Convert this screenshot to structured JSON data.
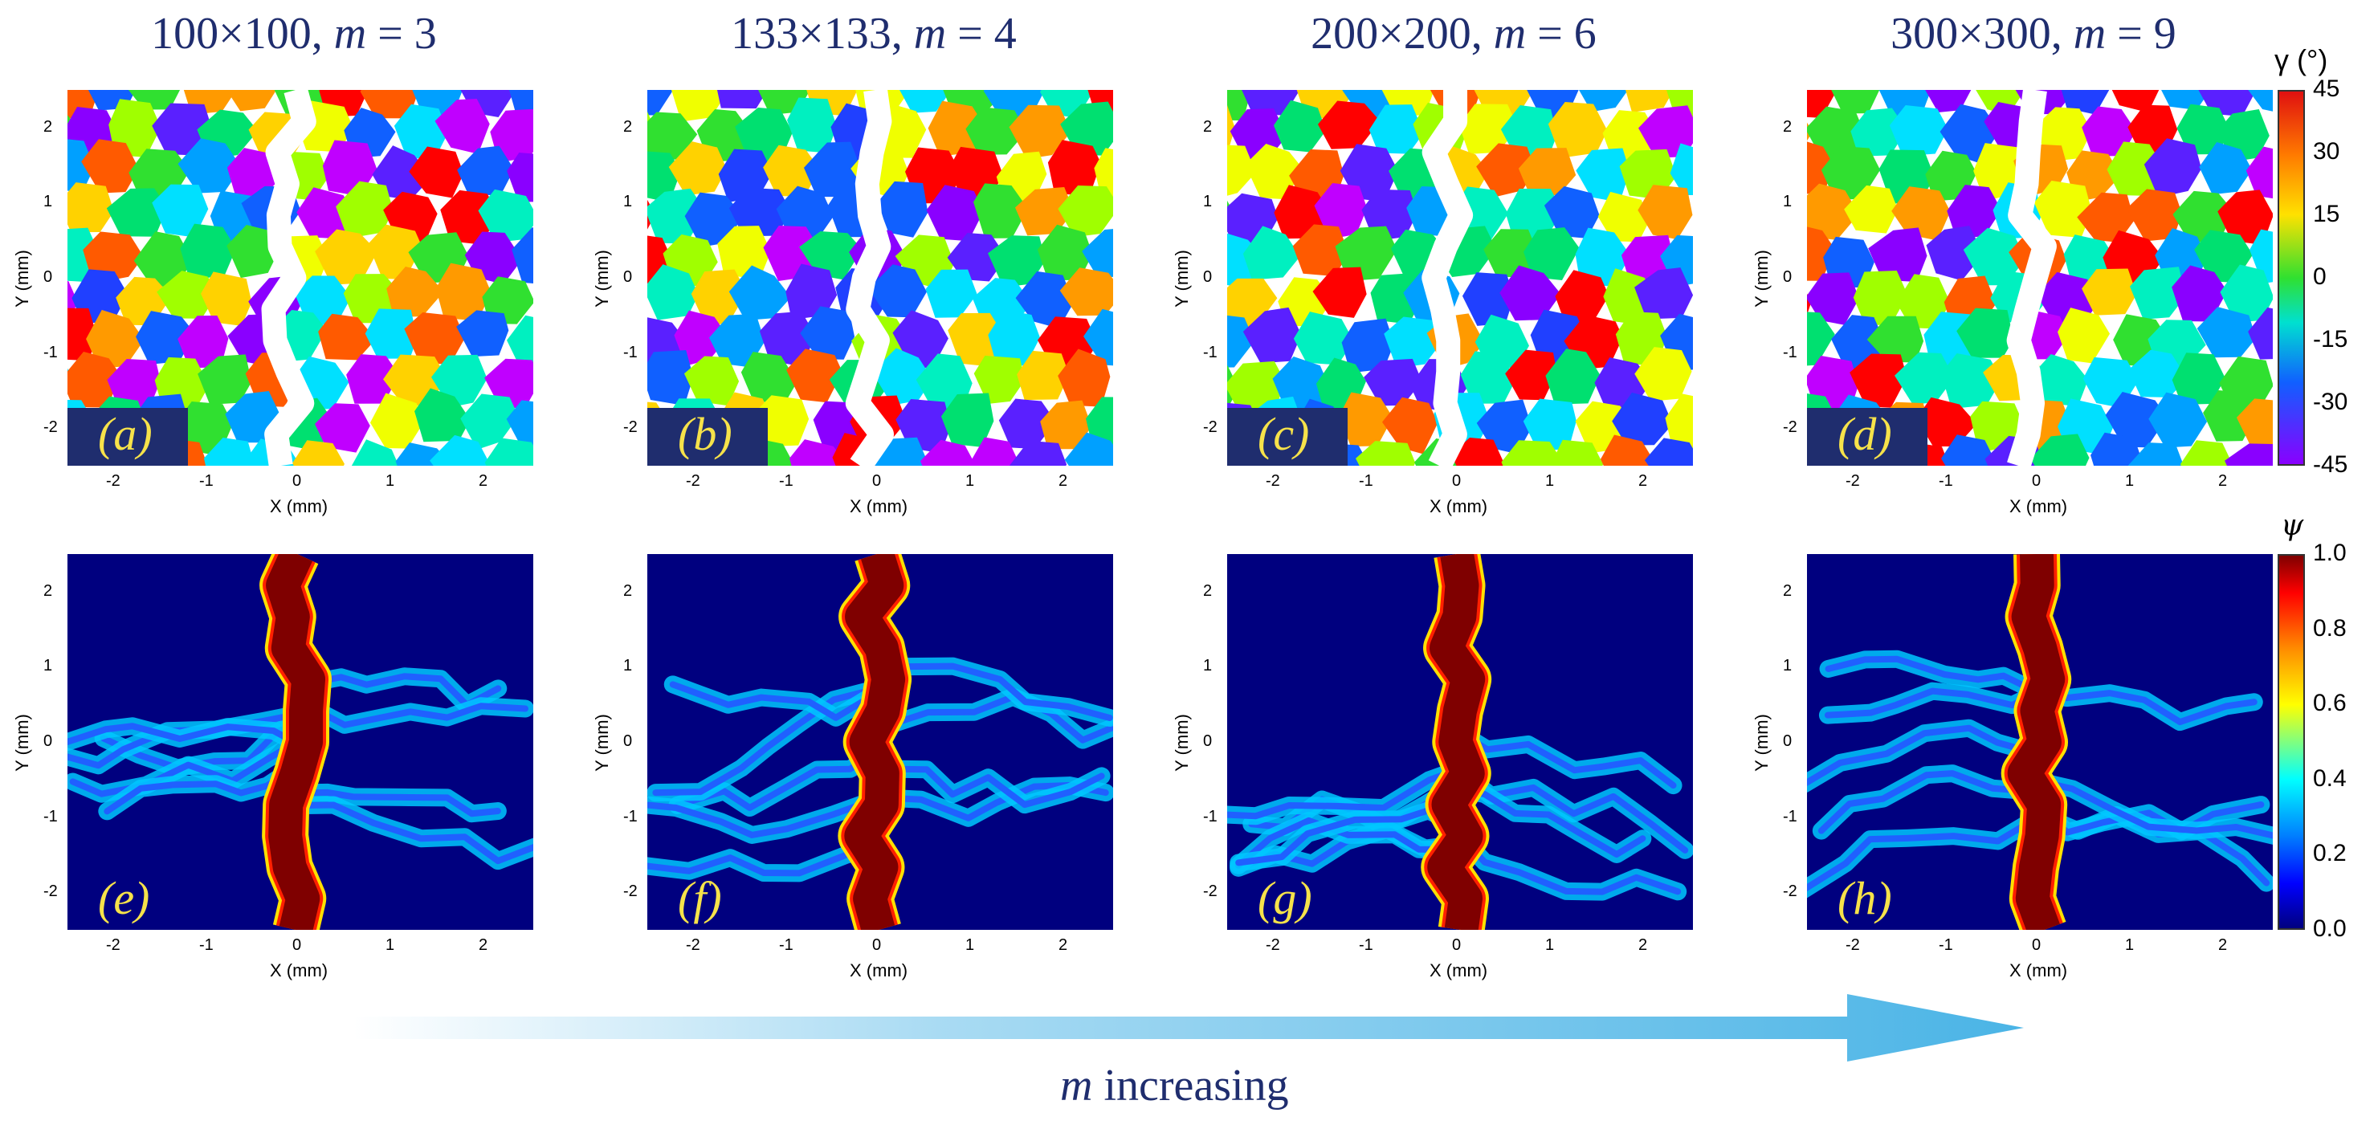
{
  "columns": [
    {
      "grid": "100×100, ",
      "m_symbol": "m",
      "m_eq": " = 3",
      "grain_label": "(a)",
      "damage_label": "(e)"
    },
    {
      "grid": "133×133, ",
      "m_symbol": "m",
      "m_eq": " = 4",
      "grain_label": "(b)",
      "damage_label": "(f)"
    },
    {
      "grid": "200×200, ",
      "m_symbol": "m",
      "m_eq": " = 6",
      "grain_label": "(c)",
      "damage_label": "(g)"
    },
    {
      "grid": "300×300, ",
      "m_symbol": "m",
      "m_eq": " = 9",
      "grain_label": "(d)",
      "damage_label": "(h)"
    }
  ],
  "axes": {
    "xlabel": "X (mm)",
    "ylabel": "Y (mm)",
    "x_ticks": [
      "-2",
      "-1",
      "0",
      "1",
      "2"
    ],
    "y_ticks": [
      "2",
      "1",
      "0",
      "-1",
      "-2"
    ],
    "x_range": [
      -2.5,
      2.5
    ],
    "y_range": [
      -2.5,
      2.5
    ]
  },
  "colorbar_gamma": {
    "title": "γ (°)",
    "ticks": [
      "45",
      "30",
      "15",
      "0",
      "-15",
      "-30",
      "-45"
    ],
    "range": [
      -45,
      45
    ]
  },
  "colorbar_psi": {
    "title": "ψ",
    "ticks": [
      "1.0",
      "0.8",
      "0.6",
      "0.4",
      "0.2",
      "0.0"
    ],
    "range": [
      0,
      1
    ]
  },
  "arrow": {
    "symbol": "m",
    "text": " increasing"
  },
  "colors": {
    "navy": "#1f2d6e",
    "label_yellow": "#f6e24a",
    "field_bg": "#00007f",
    "crack": "#7f0000",
    "arrow": "#4ab4e6"
  },
  "chart_data": [
    {
      "type": "heatmap",
      "title": "100×100, m = 3",
      "panel": "(a)",
      "field": "grain orientation γ (°)",
      "xlabel": "X (mm)",
      "ylabel": "Y (mm)",
      "xlim": [
        -2.5,
        2.5
      ],
      "ylim": [
        -2.5,
        2.5
      ],
      "zlim": [
        -45,
        45
      ]
    },
    {
      "type": "heatmap",
      "title": "133×133, m = 4",
      "panel": "(b)",
      "field": "grain orientation γ (°)",
      "xlabel": "X (mm)",
      "ylabel": "Y (mm)",
      "xlim": [
        -2.5,
        2.5
      ],
      "ylim": [
        -2.5,
        2.5
      ],
      "zlim": [
        -45,
        45
      ]
    },
    {
      "type": "heatmap",
      "title": "200×200, m = 6",
      "panel": "(c)",
      "field": "grain orientation γ (°)",
      "xlabel": "X (mm)",
      "ylabel": "Y (mm)",
      "xlim": [
        -2.5,
        2.5
      ],
      "ylim": [
        -2.5,
        2.5
      ],
      "zlim": [
        -45,
        45
      ]
    },
    {
      "type": "heatmap",
      "title": "300×300, m = 9",
      "panel": "(d)",
      "field": "grain orientation γ (°)",
      "xlabel": "X (mm)",
      "ylabel": "Y (mm)",
      "xlim": [
        -2.5,
        2.5
      ],
      "ylim": [
        -2.5,
        2.5
      ],
      "zlim": [
        -45,
        45
      ]
    },
    {
      "type": "heatmap",
      "panel": "(e)",
      "field": "damage ψ",
      "xlabel": "X (mm)",
      "ylabel": "Y (mm)",
      "xlim": [
        -2.5,
        2.5
      ],
      "ylim": [
        -2.5,
        2.5
      ],
      "zlim": [
        0,
        1
      ]
    },
    {
      "type": "heatmap",
      "panel": "(f)",
      "field": "damage ψ",
      "xlabel": "X (mm)",
      "ylabel": "Y (mm)",
      "xlim": [
        -2.5,
        2.5
      ],
      "ylim": [
        -2.5,
        2.5
      ],
      "zlim": [
        0,
        1
      ]
    },
    {
      "type": "heatmap",
      "panel": "(g)",
      "field": "damage ψ",
      "xlabel": "X (mm)",
      "ylabel": "Y (mm)",
      "xlim": [
        -2.5,
        2.5
      ],
      "ylim": [
        -2.5,
        2.5
      ],
      "zlim": [
        0,
        1
      ]
    },
    {
      "type": "heatmap",
      "panel": "(h)",
      "field": "damage ψ",
      "xlabel": "X (mm)",
      "ylabel": "Y (mm)",
      "xlim": [
        -2.5,
        2.5
      ],
      "ylim": [
        -2.5,
        2.5
      ],
      "zlim": [
        0,
        1
      ]
    }
  ]
}
